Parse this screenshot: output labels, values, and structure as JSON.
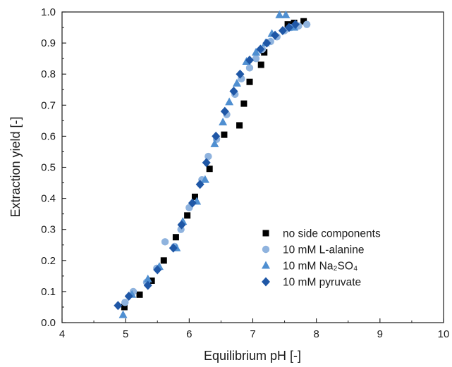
{
  "chart_data": {
    "type": "scatter",
    "xlabel": "Equilibrium pH [-]",
    "ylabel": "Extraction yield [-]",
    "xlim": [
      4,
      10
    ],
    "ylim": [
      0,
      1.0
    ],
    "x_ticks": [
      "4",
      "5",
      "6",
      "7",
      "8",
      "9",
      "10"
    ],
    "y_ticks": [
      "0.0",
      "0.1",
      "0.2",
      "0.3",
      "0.4",
      "0.5",
      "0.6",
      "0.7",
      "0.8",
      "0.9",
      "1.0"
    ],
    "legend_position": "bottom-right",
    "grid": false,
    "series": [
      {
        "name": "no side components",
        "marker": "square",
        "color": "#000000",
        "points": [
          [
            4.98,
            0.05
          ],
          [
            5.22,
            0.09
          ],
          [
            5.41,
            0.135
          ],
          [
            5.6,
            0.2
          ],
          [
            5.79,
            0.275
          ],
          [
            5.97,
            0.345
          ],
          [
            6.09,
            0.405
          ],
          [
            6.32,
            0.495
          ],
          [
            6.55,
            0.605
          ],
          [
            6.79,
            0.635
          ],
          [
            6.86,
            0.705
          ],
          [
            6.95,
            0.775
          ],
          [
            7.13,
            0.83
          ],
          [
            7.18,
            0.87
          ],
          [
            7.55,
            0.96
          ],
          [
            7.65,
            0.965
          ],
          [
            7.8,
            0.97
          ]
        ]
      },
      {
        "name": "10 mM L-alanine",
        "marker": "circle",
        "color": "#8fb3de",
        "points": [
          [
            4.99,
            0.065
          ],
          [
            5.12,
            0.1
          ],
          [
            5.33,
            0.13
          ],
          [
            5.49,
            0.175
          ],
          [
            5.62,
            0.26
          ],
          [
            5.77,
            0.245
          ],
          [
            5.87,
            0.3
          ],
          [
            6.0,
            0.37
          ],
          [
            6.2,
            0.46
          ],
          [
            6.3,
            0.535
          ],
          [
            6.43,
            0.59
          ],
          [
            6.59,
            0.67
          ],
          [
            6.72,
            0.735
          ],
          [
            6.82,
            0.785
          ],
          [
            6.95,
            0.82
          ],
          [
            7.05,
            0.85
          ],
          [
            7.15,
            0.88
          ],
          [
            7.28,
            0.905
          ],
          [
            7.38,
            0.92
          ],
          [
            7.5,
            0.94
          ],
          [
            7.6,
            0.95
          ],
          [
            7.72,
            0.955
          ],
          [
            7.85,
            0.96
          ]
        ]
      },
      {
        "name": "10 mM Na₂SO₄",
        "marker": "triangle",
        "color": "#4f8fd1",
        "points": [
          [
            4.96,
            0.025
          ],
          [
            5.1,
            0.09
          ],
          [
            5.35,
            0.14
          ],
          [
            5.53,
            0.18
          ],
          [
            5.8,
            0.24
          ],
          [
            5.9,
            0.325
          ],
          [
            6.12,
            0.39
          ],
          [
            6.25,
            0.46
          ],
          [
            6.4,
            0.575
          ],
          [
            6.53,
            0.645
          ],
          [
            6.63,
            0.71
          ],
          [
            6.75,
            0.77
          ],
          [
            6.9,
            0.84
          ],
          [
            7.05,
            0.87
          ],
          [
            7.2,
            0.9
          ],
          [
            7.3,
            0.93
          ],
          [
            7.42,
            0.99
          ],
          [
            7.52,
            0.99
          ],
          [
            7.65,
            0.95
          ]
        ]
      },
      {
        "name": "10 mM pyruvate",
        "marker": "diamond",
        "color": "#1f57a6",
        "points": [
          [
            4.88,
            0.055
          ],
          [
            5.05,
            0.085
          ],
          [
            5.35,
            0.12
          ],
          [
            5.5,
            0.17
          ],
          [
            5.75,
            0.24
          ],
          [
            5.88,
            0.315
          ],
          [
            6.05,
            0.385
          ],
          [
            6.17,
            0.445
          ],
          [
            6.27,
            0.515
          ],
          [
            6.42,
            0.6
          ],
          [
            6.56,
            0.68
          ],
          [
            6.7,
            0.745
          ],
          [
            6.8,
            0.8
          ],
          [
            6.95,
            0.845
          ],
          [
            7.12,
            0.88
          ],
          [
            7.22,
            0.9
          ],
          [
            7.35,
            0.925
          ],
          [
            7.47,
            0.94
          ],
          [
            7.57,
            0.95
          ],
          [
            7.67,
            0.96
          ]
        ]
      }
    ]
  }
}
